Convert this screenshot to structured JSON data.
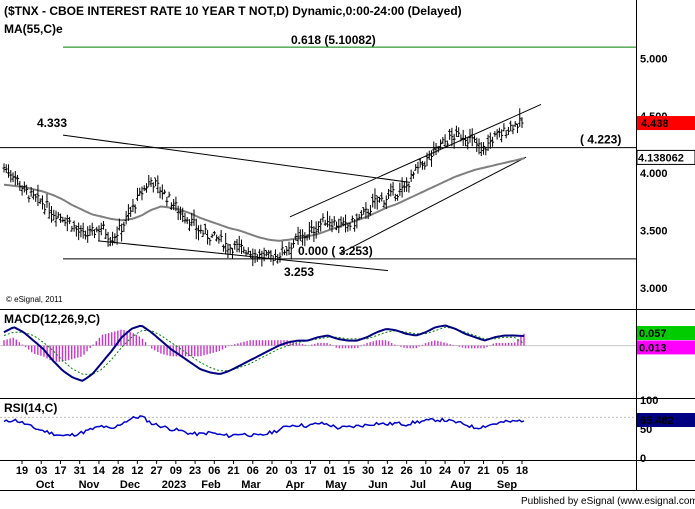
{
  "chart_data": [
    {
      "type": "candlestick",
      "title": "($TNX - CBOE INTEREST RATE 10 YEAR T NOT,D) Dynamic,0:00-24:00 (Delayed)",
      "indicator_label": "MA(55,C)e",
      "watermark": "© eSignal, 2011",
      "ylim": [
        2.85,
        5.25
      ],
      "y_ticks": [
        "5.000",
        "4.500",
        "4.000",
        "3.500",
        "3.000"
      ],
      "y_tick_values": [
        5.0,
        4.5,
        4.0,
        3.5,
        3.0
      ],
      "last_price_label": "4.438",
      "last_price": 4.438,
      "line_price_label": "4.138062",
      "line_price": 4.138,
      "fib_label": "0.618 (5.10082)",
      "fib_value": 5.1008,
      "fib_color": "#008000",
      "level_4223_label": "( 4.223)",
      "level_4223": 4.223,
      "low_label": "0.000 ( 3.253)",
      "low_value": 3.253,
      "high_annot": "4.333",
      "high_value": 4.333,
      "low_annot": "3.253",
      "price_path": [
        4.05,
        3.99,
        3.86,
        3.78,
        3.74,
        3.66,
        3.62,
        3.55,
        3.45,
        3.48,
        3.53,
        3.43,
        3.52,
        3.67,
        3.82,
        3.94,
        3.86,
        3.76,
        3.67,
        3.59,
        3.5,
        3.45,
        3.42,
        3.36,
        3.35,
        3.33,
        3.28,
        3.26,
        3.28,
        3.35,
        3.42,
        3.46,
        3.53,
        3.6,
        3.56,
        3.53,
        3.58,
        3.65,
        3.75,
        3.78,
        3.82,
        3.86,
        4.0,
        4.09,
        4.18,
        4.27,
        4.32,
        4.33,
        4.28,
        4.2,
        4.3,
        4.35,
        4.42,
        4.44
      ],
      "ma_path": [
        3.9,
        3.89,
        3.88,
        3.86,
        3.84,
        3.81,
        3.77,
        3.72,
        3.68,
        3.64,
        3.62,
        3.6,
        3.59,
        3.6,
        3.63,
        3.68,
        3.71,
        3.7,
        3.68,
        3.65,
        3.61,
        3.58,
        3.55,
        3.52,
        3.5,
        3.47,
        3.44,
        3.42,
        3.41,
        3.42,
        3.43,
        3.45,
        3.47,
        3.5,
        3.53,
        3.56,
        3.59,
        3.62,
        3.66,
        3.7,
        3.73,
        3.77,
        3.81,
        3.85,
        3.89,
        3.93,
        3.97,
        4.0,
        4.03,
        4.05,
        4.07,
        4.09,
        4.11,
        4.13
      ],
      "line_color": "#000000",
      "ma_color": "#7f7f7f"
    },
    {
      "type": "line",
      "name": "MACD(12,26,9,C)",
      "ylim": [
        -0.3,
        0.2
      ],
      "value_label_1": "0.057",
      "value_label_2": "0.013",
      "value_1": 0.057,
      "value_2": 0.013,
      "macd_path": [
        0.08,
        0.11,
        0.08,
        0.03,
        -0.02,
        -0.09,
        -0.15,
        -0.19,
        -0.21,
        -0.17,
        -0.1,
        -0.03,
        0.05,
        0.1,
        0.12,
        0.08,
        0.03,
        -0.02,
        -0.06,
        -0.1,
        -0.14,
        -0.16,
        -0.17,
        -0.15,
        -0.12,
        -0.09,
        -0.06,
        -0.03,
        0.0,
        0.02,
        0.03,
        0.03,
        0.05,
        0.06,
        0.04,
        0.03,
        0.03,
        0.05,
        0.08,
        0.1,
        0.09,
        0.07,
        0.06,
        0.08,
        0.11,
        0.12,
        0.1,
        0.07,
        0.05,
        0.03,
        0.05,
        0.06,
        0.06,
        0.057
      ],
      "signal_path": [
        0.06,
        0.08,
        0.08,
        0.06,
        0.02,
        -0.03,
        -0.09,
        -0.14,
        -0.17,
        -0.17,
        -0.14,
        -0.08,
        -0.01,
        0.05,
        0.09,
        0.09,
        0.06,
        0.02,
        -0.02,
        -0.06,
        -0.1,
        -0.13,
        -0.15,
        -0.15,
        -0.13,
        -0.11,
        -0.08,
        -0.05,
        -0.02,
        0.0,
        0.02,
        0.03,
        0.04,
        0.05,
        0.05,
        0.04,
        0.04,
        0.04,
        0.06,
        0.08,
        0.09,
        0.08,
        0.07,
        0.07,
        0.09,
        0.11,
        0.1,
        0.08,
        0.06,
        0.04,
        0.04,
        0.05,
        0.05,
        0.013
      ],
      "macd_color": "#000080",
      "signal_color": "#008000",
      "hist_color": "#cc33cc"
    },
    {
      "type": "line",
      "name": "RSI(14,C)",
      "ylim": [
        0,
        100
      ],
      "y_ticks": [
        "100",
        "50",
        "0"
      ],
      "y_tick_values": [
        100,
        50,
        0
      ],
      "value_label": "65.482",
      "value": 65.482,
      "rsi_path": [
        62,
        66,
        60,
        52,
        47,
        42,
        38,
        40,
        44,
        50,
        55,
        49,
        60,
        68,
        72,
        60,
        55,
        50,
        47,
        42,
        41,
        44,
        40,
        38,
        42,
        40,
        38,
        43,
        48,
        56,
        57,
        55,
        60,
        58,
        52,
        53,
        55,
        57,
        60,
        58,
        60,
        58,
        62,
        64,
        66,
        65,
        62,
        58,
        52,
        55,
        59,
        62,
        63,
        65.482
      ],
      "rsi_color": "#0000cc"
    }
  ],
  "x_axis": {
    "day_ticks": [
      "19",
      "03",
      "17",
      "31",
      "14",
      "28",
      "12",
      "27",
      "09",
      "23",
      "06",
      "21",
      "06",
      "20",
      "03",
      "17",
      "01",
      "15",
      "30",
      "12",
      "26",
      "10",
      "24",
      "07",
      "21",
      "05",
      "18"
    ],
    "month_labels": [
      "Oct",
      "Nov",
      "Dec",
      "2023",
      "Feb",
      "Mar",
      "Apr",
      "May",
      "Jun",
      "Jul",
      "Aug",
      "Sep"
    ]
  },
  "footer": "Published by eSignal (www.esignal.com)",
  "colors": {
    "price_badge": "#ff0000",
    "macd_badge": "#00cc00",
    "macd_badge2": "#ff00ff",
    "rsi_badge": "#000080",
    "grid": "#9e9e9e"
  }
}
